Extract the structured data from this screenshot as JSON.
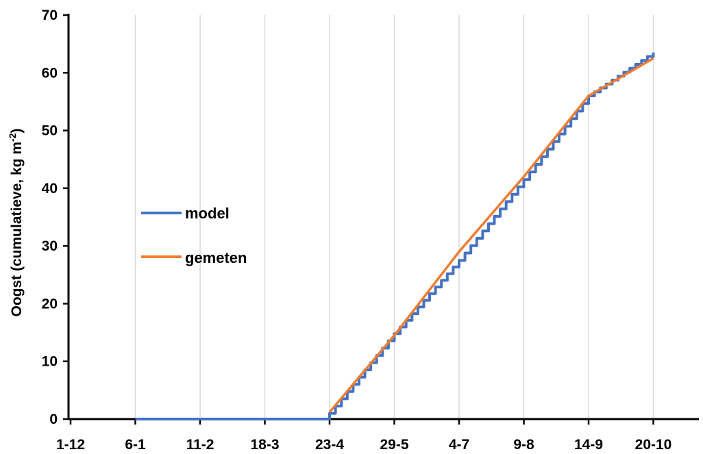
{
  "chart_data": {
    "type": "line",
    "title": "",
    "xlabel": "",
    "ylabel": "Oogst (cumulatieve, kg m",
    "ylabel_superscript": "-2",
    "ylabel_close": ")",
    "ylim": [
      0,
      70
    ],
    "y_ticks": [
      0,
      10,
      20,
      30,
      40,
      50,
      60,
      70
    ],
    "x_ticks": [
      "1-12",
      "6-1",
      "11-2",
      "18-3",
      "23-4",
      "29-5",
      "4-7",
      "9-8",
      "14-9",
      "20-10"
    ],
    "grid": "vertical",
    "legend_position": "middle-left",
    "colors": {
      "model": "#4472C4",
      "gemeten": "#ED7D31"
    },
    "series": [
      {
        "name": "model",
        "style": "step",
        "points": [
          [
            "6-1",
            0
          ],
          [
            "11-2",
            0
          ],
          [
            "18-3",
            0
          ],
          [
            "23-4",
            0
          ],
          [
            "23-4",
            1.0
          ],
          [
            "29-5",
            14.8
          ],
          [
            "4-7",
            27.5
          ],
          [
            "9-8",
            41.5
          ],
          [
            "14-9",
            56.0
          ],
          [
            "20-10",
            63.5
          ]
        ]
      },
      {
        "name": "gemeten",
        "style": "line",
        "points": [
          [
            "23-4",
            1.2
          ],
          [
            "29-5",
            14.5
          ],
          [
            "4-7",
            29.0
          ],
          [
            "9-8",
            42.0
          ],
          [
            "14-9",
            56.0
          ],
          [
            "20-10",
            62.5
          ]
        ]
      }
    ]
  }
}
